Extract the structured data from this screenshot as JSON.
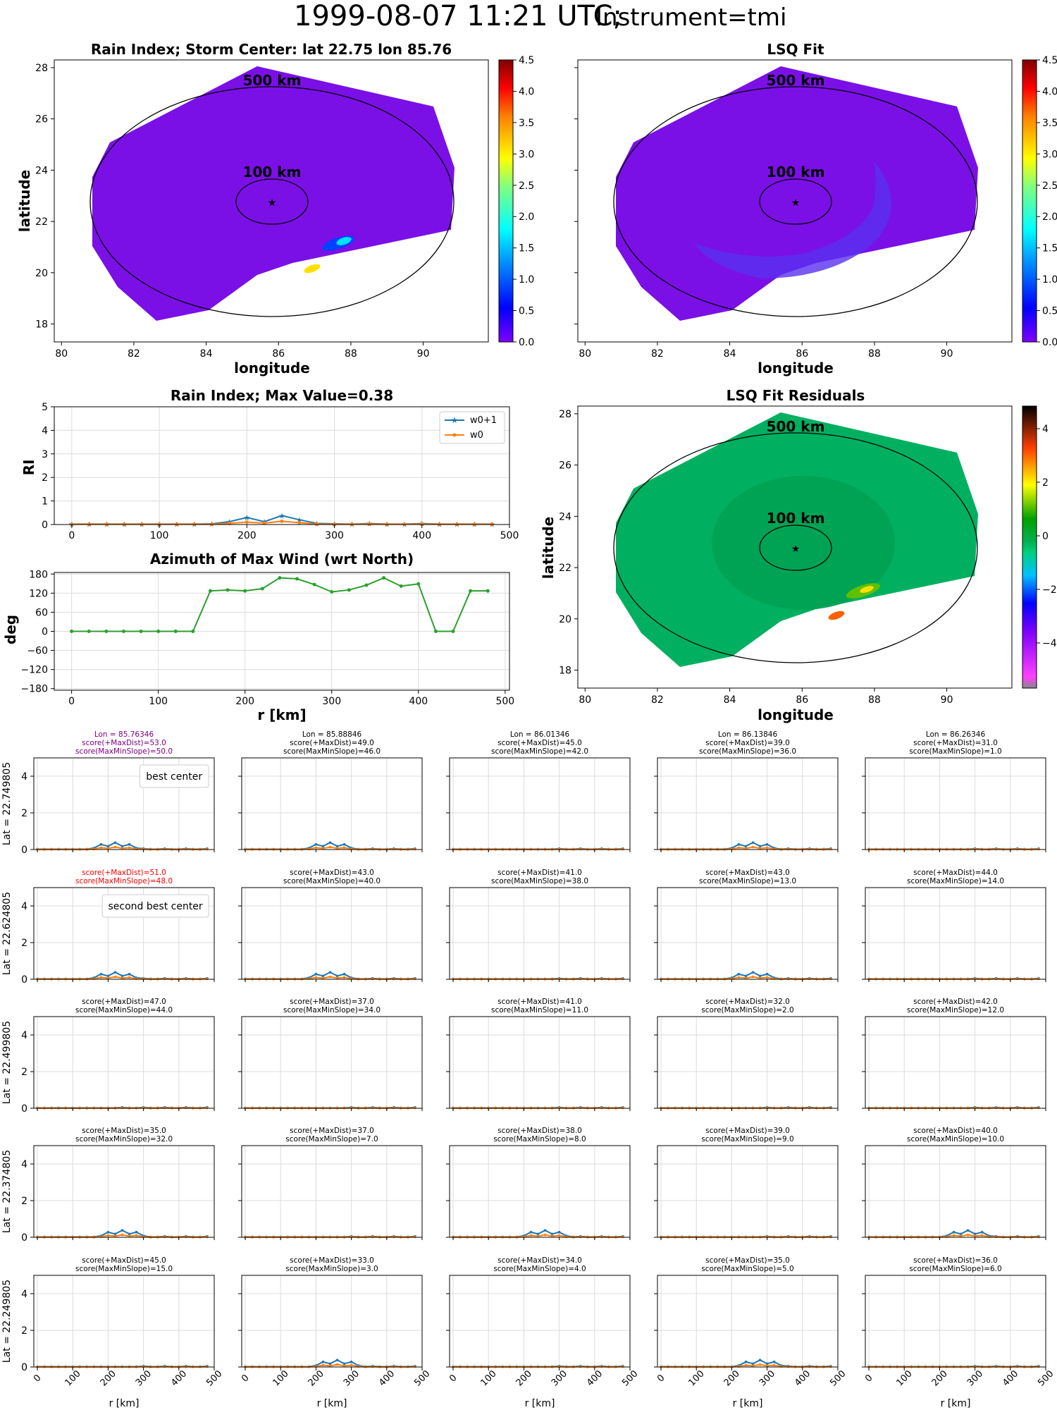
{
  "suptitle": {
    "main": "1999-08-07 11:21 UTC;",
    "instrument": "Instrument=tmi"
  },
  "maps": {
    "rain_index": {
      "title": "Rain Index; Storm Center: lat 22.75 lon 85.76",
      "xlabel": "longitude",
      "ylabel": "latitude",
      "xticks": [
        80,
        82,
        84,
        86,
        88,
        90
      ],
      "yticks": [
        18,
        20,
        22,
        24,
        26,
        28
      ],
      "xlim": [
        79.8,
        91.8
      ],
      "ylim": [
        17.3,
        28.3
      ],
      "ring_labels": [
        "500 km",
        "100 km"
      ],
      "colorbar_ticks": [
        "0.0",
        "0.5",
        "1.0",
        "1.5",
        "2.0",
        "2.5",
        "3.0",
        "3.5",
        "4.0",
        "4.5"
      ]
    },
    "lsq_fit": {
      "title": "LSQ Fit",
      "xlabel": "longitude",
      "xticks": [
        80,
        82,
        84,
        86,
        88,
        90
      ],
      "ring_labels": [
        "500 km",
        "100 km"
      ],
      "colorbar_ticks": [
        "0.0",
        "0.5",
        "1.0",
        "1.5",
        "2.0",
        "2.5",
        "3.0",
        "3.5",
        "4.0",
        "4.5"
      ]
    },
    "residuals": {
      "title": "LSQ Fit Residuals",
      "xlabel": "longitude",
      "ylabel": "latitude",
      "xticks": [
        80,
        82,
        84,
        86,
        88,
        90
      ],
      "yticks": [
        18,
        20,
        22,
        24,
        26,
        28
      ],
      "ring_labels": [
        "500 km",
        "100 km"
      ],
      "colorbar_ticks": [
        "4",
        "2",
        "0",
        "−2",
        "−4"
      ]
    },
    "storm_center": {
      "lat": 22.75,
      "lon": 85.76
    }
  },
  "chart_data": [
    {
      "type": "line",
      "title": "Rain Index; Max Value=0.38",
      "ylabel": "RI",
      "xlim": [
        -20,
        500
      ],
      "ylim": [
        0,
        5
      ],
      "xticks": [
        0,
        100,
        200,
        300,
        400,
        500
      ],
      "yticks": [
        0,
        1,
        2,
        3,
        4,
        5
      ],
      "legend": "top-right",
      "x": [
        0,
        20,
        40,
        60,
        80,
        100,
        120,
        140,
        160,
        180,
        200,
        220,
        240,
        260,
        280,
        300,
        320,
        340,
        360,
        380,
        400,
        420,
        440,
        460,
        480
      ],
      "series": [
        {
          "name": "w0+1",
          "color": "#1f77b4",
          "marker": "star",
          "values": [
            0.02,
            0.02,
            0.02,
            0.02,
            0.02,
            0.02,
            0.02,
            0.02,
            0.03,
            0.12,
            0.3,
            0.12,
            0.38,
            0.2,
            0.05,
            0.03,
            0.02,
            0.04,
            0.02,
            0.02,
            0.04,
            0.02,
            0.02,
            0.02,
            0.02
          ]
        },
        {
          "name": "w0",
          "color": "#ff7f0e",
          "marker": "dot",
          "values": [
            0.01,
            0.01,
            0.01,
            0.01,
            0.01,
            0.01,
            0.01,
            0.01,
            0.01,
            0.05,
            0.1,
            0.06,
            0.14,
            0.08,
            0.02,
            0.01,
            0.01,
            0.02,
            0.01,
            0.01,
            0.02,
            0.01,
            0.01,
            0.01,
            0.01
          ]
        }
      ]
    },
    {
      "type": "line",
      "title": "Azimuth of Max Wind (wrt North)",
      "xlabel": "r [km]",
      "ylabel": "deg",
      "xlim": [
        -20,
        505
      ],
      "ylim": [
        -185,
        185
      ],
      "xticks": [
        0,
        100,
        200,
        300,
        400,
        500
      ],
      "yticks": [
        180,
        120,
        60,
        0,
        -60,
        -120,
        -180
      ],
      "ytick_labels": [
        "180",
        "120",
        "60",
        "0",
        "−60",
        "−120",
        "−180"
      ],
      "x": [
        0,
        20,
        40,
        60,
        80,
        100,
        120,
        140,
        160,
        180,
        200,
        220,
        240,
        260,
        280,
        300,
        320,
        340,
        360,
        380,
        400,
        420,
        440,
        460,
        480
      ],
      "series": [
        {
          "color": "#2ca02c",
          "values": [
            0,
            0,
            0,
            0,
            0,
            0,
            0,
            0,
            127,
            130,
            127,
            134,
            168,
            165,
            147,
            124,
            130,
            145,
            168,
            142,
            149,
            0,
            0,
            127,
            127
          ]
        }
      ]
    },
    {
      "type": "line",
      "grid_rows": [
        "Lat = 22.749805",
        "Lat = 22.624805",
        "Lat = 22.499805",
        "Lat = 22.374805",
        "Lat = 22.249805"
      ],
      "x_ticks": [
        0,
        100,
        200,
        300,
        400,
        500
      ],
      "y_ticks": [
        0,
        2,
        4
      ],
      "xlim": [
        -10,
        500
      ],
      "ylim": [
        0,
        5
      ],
      "xlabel": "r [km]",
      "panels": [
        [
          {
            "lines": [
              "Lon = 85.76346",
              "score(+MaxDist)=53.0",
              "score(MaxMinSlope)=50.0"
            ],
            "color": "#800080",
            "legend": "best center",
            "peak": 220
          },
          {
            "lines": [
              "Lon = 85.88846",
              "score(+MaxDist)=49.0",
              "score(MaxMinSlope)=46.0"
            ],
            "color": "#000000",
            "peak": 240
          },
          {
            "lines": [
              "Lon = 86.01346",
              "score(+MaxDist)=45.0",
              "score(MaxMinSlope)=42.0"
            ],
            "color": "#000000",
            "peak": 250
          },
          {
            "lines": [
              "Lon = 86.13846",
              "score(+MaxDist)=39.0",
              "score(MaxMinSlope)=36.0"
            ],
            "color": "#000000",
            "peak": 260
          },
          {
            "lines": [
              "Lon = 86.26346",
              "score(+MaxDist)=31.0",
              "score(MaxMinSlope)=1.0"
            ],
            "color": "#000000",
            "peak": 270
          }
        ],
        [
          {
            "lines": [
              "score(+MaxDist)=51.0",
              "score(MaxMinSlope)=48.0"
            ],
            "color": "#ff0000",
            "legend": "second best center",
            "peak": 220
          },
          {
            "lines": [
              "score(+MaxDist)=43.0",
              "score(MaxMinSlope)=40.0"
            ],
            "color": "#000000",
            "peak": 240
          },
          {
            "lines": [
              "score(+MaxDist)=41.0",
              "score(MaxMinSlope)=38.0"
            ],
            "color": "#000000",
            "peak": 250
          },
          {
            "lines": [
              "score(+MaxDist)=43.0",
              "score(MaxMinSlope)=13.0"
            ],
            "color": "#000000",
            "peak": 260
          },
          {
            "lines": [
              "score(+MaxDist)=44.0",
              "score(MaxMinSlope)=14.0"
            ],
            "color": "#000000",
            "peak": 270
          }
        ],
        [
          {
            "lines": [
              "score(+MaxDist)=47.0",
              "score(MaxMinSlope)=44.0"
            ],
            "color": "#000000",
            "peak": 230
          },
          {
            "lines": [
              "score(+MaxDist)=37.0",
              "score(MaxMinSlope)=34.0"
            ],
            "color": "#000000",
            "peak": 245
          },
          {
            "lines": [
              "score(+MaxDist)=41.0",
              "score(MaxMinSlope)=11.0"
            ],
            "color": "#000000",
            "peak": 255
          },
          {
            "lines": [
              "score(+MaxDist)=32.0",
              "score(MaxMinSlope)=2.0"
            ],
            "color": "#000000",
            "peak": 265
          },
          {
            "lines": [
              "score(+MaxDist)=42.0",
              "score(MaxMinSlope)=12.0"
            ],
            "color": "#000000",
            "peak": 275
          }
        ],
        [
          {
            "lines": [
              "score(+MaxDist)=35.0",
              "score(MaxMinSlope)=32.0"
            ],
            "color": "#000000",
            "peak": 240
          },
          {
            "lines": [
              "score(+MaxDist)=37.0",
              "score(MaxMinSlope)=7.0"
            ],
            "color": "#000000",
            "peak": 250
          },
          {
            "lines": [
              "score(+MaxDist)=38.0",
              "score(MaxMinSlope)=8.0"
            ],
            "color": "#000000",
            "peak": 260
          },
          {
            "lines": [
              "score(+MaxDist)=39.0",
              "score(MaxMinSlope)=9.0"
            ],
            "color": "#000000",
            "peak": 270
          },
          {
            "lines": [
              "score(+MaxDist)=40.0",
              "score(MaxMinSlope)=10.0"
            ],
            "color": "#000000",
            "peak": 280
          }
        ],
        [
          {
            "lines": [
              "score(+MaxDist)=45.0",
              "score(MaxMinSlope)=15.0"
            ],
            "color": "#000000",
            "peak": 250
          },
          {
            "lines": [
              "score(+MaxDist)=33.0",
              "score(MaxMinSlope)=3.0"
            ],
            "color": "#000000",
            "peak": 260
          },
          {
            "lines": [
              "score(+MaxDist)=34.0",
              "score(MaxMinSlope)=4.0"
            ],
            "color": "#000000",
            "peak": 270
          },
          {
            "lines": [
              "score(+MaxDist)=35.0",
              "score(MaxMinSlope)=5.0"
            ],
            "color": "#000000",
            "peak": 280
          },
          {
            "lines": [
              "score(+MaxDist)=36.0",
              "score(MaxMinSlope)=6.0"
            ],
            "color": "#000000",
            "peak": 290
          }
        ]
      ]
    }
  ]
}
